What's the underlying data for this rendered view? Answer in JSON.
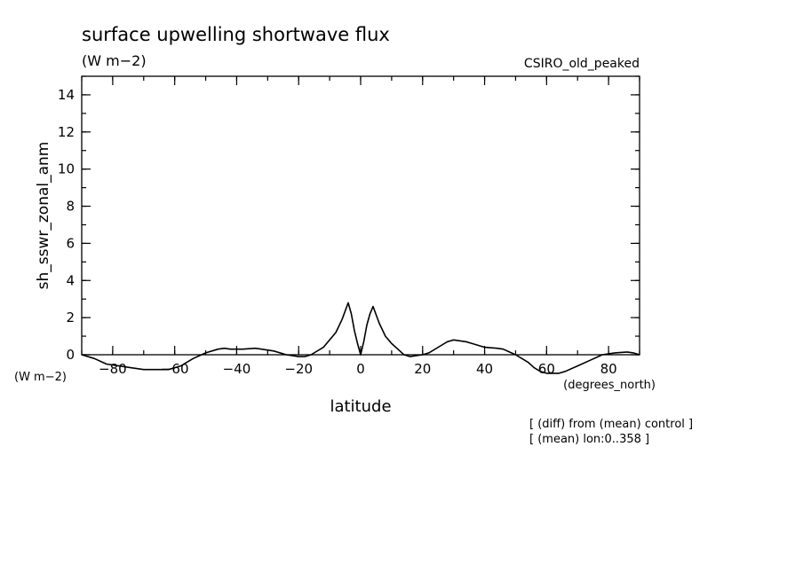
{
  "chart_data": {
    "type": "line",
    "title": "surface upwelling shortwave flux",
    "title_units": "(W m−2)",
    "model_label": "CSIRO_old_peaked",
    "ylabel": "sh_sswr_zonal_anm",
    "y_units": "(W m−2)",
    "xlabel": "latitude",
    "x_units": "(degrees_north)",
    "xlim": [
      -90,
      90
    ],
    "ylim": [
      0,
      15
    ],
    "x_ticks": [
      -80,
      -60,
      -40,
      -20,
      0,
      20,
      40,
      60,
      80
    ],
    "x_tick_labels": [
      "−80",
      "−60",
      "−40",
      "−20",
      "0",
      "20",
      "40",
      "60",
      "80"
    ],
    "y_ticks": [
      0,
      2,
      4,
      6,
      8,
      10,
      12,
      14
    ],
    "y_tick_labels": [
      "0",
      "2",
      "4",
      "6",
      "8",
      "10",
      "12",
      "14"
    ],
    "grid": false,
    "notes": [
      "[ (diff) from (mean) control ]",
      "[ (mean) lon:0..358 ]"
    ],
    "series": [
      {
        "x": [
          -90,
          -86,
          -82,
          -78,
          -74,
          -70,
          -66,
          -62,
          -58,
          -54,
          -50,
          -46,
          -44,
          -42,
          -38,
          -34,
          -32,
          -28,
          -24,
          -20,
          -18,
          -16,
          -12,
          -8,
          -6,
          -4,
          -3,
          -2,
          -1,
          0,
          1,
          2,
          3,
          4,
          6,
          8,
          10,
          12,
          14,
          16,
          18,
          20,
          22,
          26,
          28,
          30,
          32,
          34,
          36,
          38,
          40,
          44,
          46,
          48,
          50,
          52,
          54,
          56,
          58,
          60,
          62,
          64,
          66,
          70,
          74,
          78,
          82,
          86,
          88,
          90
        ],
        "y": [
          0.0,
          -0.2,
          -0.5,
          -0.6,
          -0.7,
          -0.8,
          -0.8,
          -0.8,
          -0.6,
          -0.2,
          0.1,
          0.3,
          0.35,
          0.3,
          0.3,
          0.35,
          0.3,
          0.2,
          0.0,
          -0.1,
          -0.1,
          0.0,
          0.4,
          1.2,
          1.9,
          2.8,
          2.2,
          1.3,
          0.6,
          0.0,
          0.7,
          1.6,
          2.2,
          2.6,
          1.7,
          1.0,
          0.6,
          0.3,
          0.0,
          -0.1,
          -0.05,
          0.0,
          0.1,
          0.5,
          0.7,
          0.8,
          0.75,
          0.7,
          0.6,
          0.5,
          0.4,
          0.35,
          0.3,
          0.15,
          0.0,
          -0.2,
          -0.4,
          -0.7,
          -0.9,
          -1.0,
          -1.0,
          -1.0,
          -0.9,
          -0.6,
          -0.3,
          0.0,
          0.1,
          0.15,
          0.1,
          0.0
        ]
      }
    ]
  }
}
